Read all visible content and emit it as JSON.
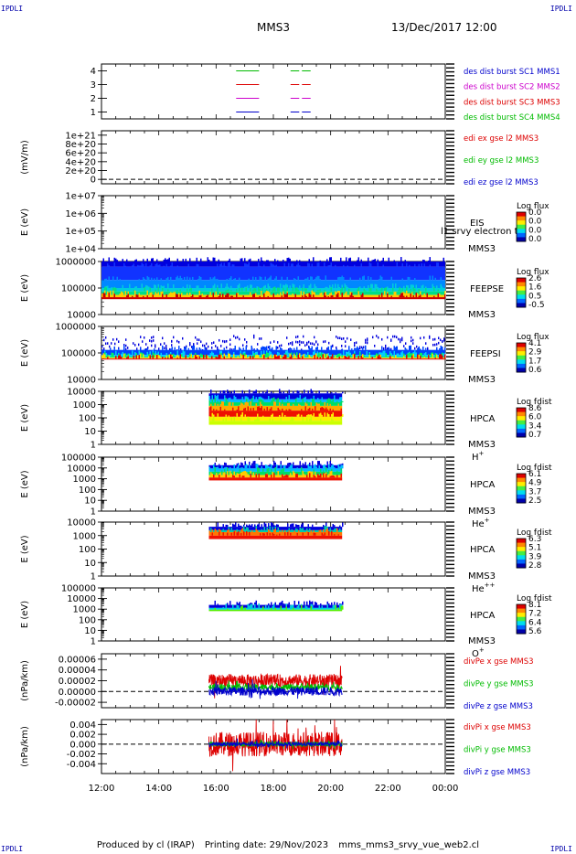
{
  "header": {
    "corner_label": "IPDLI",
    "spacecraft": "MMS3",
    "datetime": "13/Dec/2017 12:00"
  },
  "footer": {
    "produced_by": "Produced by cl (IRAP)",
    "printing_date": "Printing date: 29/Nov/2023",
    "filename": "mms_mms3_srvy_vue_web2.cl"
  },
  "colors": {
    "blue": "#0000cc",
    "magenta": "#cc00cc",
    "red": "#dd0000",
    "green": "#00bb00"
  },
  "time_axis": {
    "start_hour": 12,
    "end_hour": 24,
    "ticks": [
      "12:00",
      "14:00",
      "16:00",
      "18:00",
      "20:00",
      "22:00",
      "00:00"
    ]
  },
  "chart_data": [
    {
      "id": "burst",
      "type": "line",
      "ylim": [
        0.5,
        4.5
      ],
      "ylabel": "",
      "yticks": [
        {
          "v": 1,
          "label": "1"
        },
        {
          "v": 2,
          "label": "2"
        },
        {
          "v": 3,
          "label": "3"
        },
        {
          "v": 4,
          "label": "4"
        }
      ],
      "legend": [
        {
          "name": "des dist burst SC1 MMS1",
          "color": "#0000cc"
        },
        {
          "name": "des dist burst SC2 MMS2",
          "color": "#cc00cc"
        },
        {
          "name": "des dist burst SC3 MMS3",
          "color": "#dd0000"
        },
        {
          "name": "des dist burst SC4 MMS4",
          "color": "#00bb00"
        }
      ],
      "series": [
        {
          "level": 4,
          "color": "#00bb00",
          "intervals": [
            [
              16.7,
              17.5
            ],
            [
              18.6,
              19.3
            ]
          ]
        },
        {
          "level": 3,
          "color": "#dd0000",
          "intervals": [
            [
              16.7,
              17.5
            ],
            [
              18.6,
              19.3
            ]
          ]
        },
        {
          "level": 2,
          "color": "#cc00cc",
          "intervals": [
            [
              16.7,
              17.5
            ],
            [
              18.6,
              19.3
            ]
          ]
        },
        {
          "level": 1,
          "color": "#0000cc",
          "intervals": [
            [
              16.7,
              17.5
            ],
            [
              18.6,
              19.3
            ]
          ]
        }
      ]
    },
    {
      "id": "edi",
      "type": "line",
      "ylim": [
        -1e+20,
        1.1e+21
      ],
      "ylabel": "(mV/m)",
      "yticks": [
        {
          "v": 1e+21,
          "label": "1e+21"
        },
        {
          "v": 8e+20,
          "label": "8e+20"
        },
        {
          "v": 6e+20,
          "label": "6e+20"
        },
        {
          "v": 4e+20,
          "label": "4e+20"
        },
        {
          "v": 2e+20,
          "label": "2e+20"
        },
        {
          "v": 0,
          "label": "0"
        }
      ],
      "zero_line": true,
      "legend": [
        {
          "name": "edi ex gse l2 MMS3",
          "color": "#dd0000"
        },
        {
          "name": "edi ey gse l2 MMS3",
          "color": "#00bb00"
        },
        {
          "name": "edi ez gse l2 MMS3",
          "color": "#0000cc"
        }
      ]
    },
    {
      "id": "eis",
      "type": "heatmap",
      "ylim": [
        10000.0,
        10000000.0
      ],
      "log": true,
      "ylabel": "E (eV)",
      "yticks": [
        {
          "v": 10000000.0,
          "label": "1e+07"
        },
        {
          "v": 1000000.0,
          "label": "1e+06"
        },
        {
          "v": 100000.0,
          "label": "1e+05"
        },
        {
          "v": 10000.0,
          "label": "1e+04"
        }
      ],
      "label_main": "EIS",
      "label_sub": "MMS3",
      "overlay_text": "l1 srvy electron to",
      "colorbar": {
        "title": "Log flux",
        "ticks": [
          "0.0",
          "0.0",
          "0.0",
          "0.0"
        ]
      }
    },
    {
      "id": "feepse",
      "type": "heatmap",
      "ylim": [
        10000,
        1000000
      ],
      "log": true,
      "ylabel": "E (eV)",
      "yticks": [
        {
          "v": 1000000,
          "label": "1000000"
        },
        {
          "v": 100000,
          "label": "100000"
        },
        {
          "v": 10000,
          "label": "10000"
        }
      ],
      "label_main": "FEEPSE",
      "label_sub": "MMS3",
      "colorbar": {
        "title": "Log flux",
        "ticks": [
          "2.6",
          "1.6",
          "0.5",
          "-0.5"
        ]
      },
      "time_range": [
        12.0,
        24.0
      ],
      "bands": [
        {
          "from": 630000,
          "to": 1000000,
          "color": "#0000dd"
        },
        {
          "from": 200000,
          "to": 630000,
          "color": "#1133ff"
        },
        {
          "from": 100000,
          "to": 200000,
          "color": "#0088ff"
        },
        {
          "from": 75000,
          "to": 100000,
          "color": "#00ccdd"
        },
        {
          "from": 55000,
          "to": 75000,
          "color": "#00dd88"
        },
        {
          "from": 45000,
          "to": 55000,
          "color": "#ffcc00"
        },
        {
          "from": 38000,
          "to": 45000,
          "color": "#cc0000"
        }
      ]
    },
    {
      "id": "feepsi",
      "type": "heatmap",
      "ylim": [
        10000,
        1000000
      ],
      "log": true,
      "ylabel": "E (eV)",
      "yticks": [
        {
          "v": 1000000,
          "label": "1000000"
        },
        {
          "v": 100000,
          "label": "100000"
        },
        {
          "v": 10000,
          "label": "10000"
        }
      ],
      "label_main": "FEEPSI",
      "label_sub": "MMS3",
      "colorbar": {
        "title": "Log flux",
        "ticks": [
          "4.1",
          "2.9",
          "1.7",
          "0.6"
        ]
      },
      "time_range": [
        12.0,
        24.0
      ],
      "bands": [
        {
          "from": 130000,
          "to": 500000,
          "color": "#0000dd",
          "sparse": true
        },
        {
          "from": 85000,
          "to": 130000,
          "color": "#0044ff"
        },
        {
          "from": 72000,
          "to": 85000,
          "color": "#00ccff"
        },
        {
          "from": 66000,
          "to": 72000,
          "color": "#00ee66"
        },
        {
          "from": 61000,
          "to": 66000,
          "color": "#ffdd00"
        },
        {
          "from": 57000,
          "to": 61000,
          "color": "#dd0000"
        }
      ]
    },
    {
      "id": "hpca-h",
      "type": "heatmap",
      "ylim": [
        1,
        10000
      ],
      "log": true,
      "ylabel": "E (eV)",
      "yticks": [
        {
          "v": 10000,
          "label": "10000"
        },
        {
          "v": 1000,
          "label": "1000"
        },
        {
          "v": 100,
          "label": "100"
        },
        {
          "v": 10,
          "label": "10"
        },
        {
          "v": 1,
          "label": "1"
        }
      ],
      "label_main": "HPCA",
      "label_sub": "MMS3",
      "species": "H",
      "species_sup": "+",
      "colorbar": {
        "title": "Log fdist",
        "ticks": [
          "8.6",
          "6.0",
          "3.4",
          "0.7"
        ]
      },
      "time_range": [
        15.75,
        20.4
      ],
      "bands": [
        {
          "from": 2500,
          "to": 7000,
          "color": "#0000dd"
        },
        {
          "from": 1500,
          "to": 2500,
          "color": "#00bbff"
        },
        {
          "from": 800,
          "to": 1500,
          "color": "#00dd66"
        },
        {
          "from": 350,
          "to": 800,
          "color": "#ffaa00"
        },
        {
          "from": 120,
          "to": 350,
          "color": "#ee1100"
        },
        {
          "from": 60,
          "to": 120,
          "color": "#ffee00"
        },
        {
          "from": 30,
          "to": 60,
          "color": "#ccff00"
        }
      ]
    },
    {
      "id": "hpca-he",
      "type": "heatmap",
      "ylim": [
        1,
        100000
      ],
      "log": true,
      "ylabel": "E (eV)",
      "yticks": [
        {
          "v": 100000,
          "label": "100000"
        },
        {
          "v": 10000,
          "label": "10000"
        },
        {
          "v": 1000,
          "label": "1000"
        },
        {
          "v": 100,
          "label": "100"
        },
        {
          "v": 10,
          "label": "10"
        },
        {
          "v": 1,
          "label": "1"
        }
      ],
      "label_main": "HPCA",
      "label_sub": "MMS3",
      "species": "He",
      "species_sup": "+",
      "colorbar": {
        "title": "Log fdist",
        "ticks": [
          "6.1",
          "4.9",
          "3.7",
          "2.5"
        ]
      },
      "time_range": [
        15.75,
        20.4
      ],
      "bands": [
        {
          "from": 9000,
          "to": 18000,
          "color": "#0000dd"
        },
        {
          "from": 4500,
          "to": 9000,
          "color": "#00bbff"
        },
        {
          "from": 2200,
          "to": 4500,
          "color": "#00dd66"
        },
        {
          "from": 1300,
          "to": 2200,
          "color": "#ffcc00"
        },
        {
          "from": 700,
          "to": 1300,
          "color": "#ee1100"
        }
      ]
    },
    {
      "id": "hpca-hepp",
      "type": "heatmap",
      "ylim": [
        1,
        10000
      ],
      "log": true,
      "ylabel": "E (eV)",
      "yticks": [
        {
          "v": 10000,
          "label": "10000"
        },
        {
          "v": 1000,
          "label": "1000"
        },
        {
          "v": 100,
          "label": "100"
        },
        {
          "v": 10,
          "label": "10"
        },
        {
          "v": 1,
          "label": "1"
        }
      ],
      "label_main": "HPCA",
      "label_sub": "MMS3",
      "species": "He",
      "species_sup": "++",
      "colorbar": {
        "title": "Log fdist",
        "ticks": [
          "6.3",
          "5.1",
          "3.9",
          "2.8"
        ]
      },
      "time_range": [
        15.75,
        20.4
      ],
      "bands": [
        {
          "from": 2500,
          "to": 4500,
          "color": "#0000dd"
        },
        {
          "from": 1800,
          "to": 2500,
          "color": "#00ccaa"
        },
        {
          "from": 1000,
          "to": 1800,
          "color": "#ff7700"
        },
        {
          "from": 550,
          "to": 1000,
          "color": "#ee1100"
        }
      ]
    },
    {
      "id": "hpca-o",
      "type": "heatmap",
      "ylim": [
        1,
        100000
      ],
      "log": true,
      "ylabel": "E (eV)",
      "yticks": [
        {
          "v": 100000,
          "label": "100000"
        },
        {
          "v": 10000,
          "label": "10000"
        },
        {
          "v": 1000,
          "label": "1000"
        },
        {
          "v": 100,
          "label": "100"
        },
        {
          "v": 10,
          "label": "10"
        },
        {
          "v": 1,
          "label": "1"
        }
      ],
      "label_main": "HPCA",
      "label_sub": "MMS3",
      "species": "O",
      "species_sup": "+",
      "colorbar": {
        "title": "Log fdist",
        "ticks": [
          "8.1",
          "7.2",
          "6.4",
          "5.6"
        ]
      },
      "time_range": [
        15.75,
        20.4
      ],
      "bands": [
        {
          "from": 1300,
          "to": 2500,
          "color": "#0000dd"
        },
        {
          "from": 900,
          "to": 1300,
          "color": "#00ccdd"
        },
        {
          "from": 650,
          "to": 900,
          "color": "#55ee00"
        }
      ]
    },
    {
      "id": "divpe",
      "type": "line",
      "ylim": [
        -3e-05,
        7e-05
      ],
      "ylabel": "(nPa/km)",
      "yticks": [
        {
          "v": 6e-05,
          "label": "0.00006"
        },
        {
          "v": 4e-05,
          "label": "0.00004"
        },
        {
          "v": 2e-05,
          "label": "0.00002"
        },
        {
          "v": 0,
          "label": "0.00000"
        },
        {
          "v": -2e-05,
          "label": "-0.00002"
        }
      ],
      "zero_line": true,
      "time_range": [
        15.75,
        20.4
      ],
      "legend": [
        {
          "name": "divPe x gse MMS3",
          "color": "#dd0000"
        },
        {
          "name": "divPe y gse MMS3",
          "color": "#00bb00"
        },
        {
          "name": "divPe z gse MMS3",
          "color": "#0000cc"
        }
      ],
      "series": [
        {
          "name": "divPe x gse MMS3",
          "color": "#dd0000",
          "mean": 2e-05,
          "amp": 1.2e-05
        },
        {
          "name": "divPe y gse MMS3",
          "color": "#00bb00",
          "mean": 8e-06,
          "amp": 6e-06
        },
        {
          "name": "divPe z gse MMS3",
          "color": "#0000cc",
          "mean": 5e-07,
          "amp": 8e-06
        }
      ]
    },
    {
      "id": "divpi",
      "type": "line",
      "ylim": [
        -0.006,
        0.005
      ],
      "ylabel": "(nPa/km)",
      "yticks": [
        {
          "v": 0.004,
          "label": "0.004"
        },
        {
          "v": 0.002,
          "label": "0.002"
        },
        {
          "v": 0,
          "label": "0.000"
        },
        {
          "v": -0.002,
          "label": "-0.002"
        },
        {
          "v": -0.004,
          "label": "-0.004"
        }
      ],
      "zero_line": true,
      "time_range": [
        15.75,
        20.4
      ],
      "legend": [
        {
          "name": "divPi x gse MMS3",
          "color": "#dd0000"
        },
        {
          "name": "divPi y gse MMS3",
          "color": "#00bb00"
        },
        {
          "name": "divPi z gse MMS3",
          "color": "#0000cc"
        }
      ],
      "series": [
        {
          "name": "divPi x gse MMS3",
          "color": "#dd0000",
          "mean": 0.0,
          "amp": 0.0025
        },
        {
          "name": "divPi y gse MMS3",
          "color": "#00bb00",
          "mean": 0.0,
          "amp": 0.0005
        },
        {
          "name": "divPi z gse MMS3",
          "color": "#0000cc",
          "mean": 0.0,
          "amp": 0.0004
        }
      ]
    }
  ]
}
